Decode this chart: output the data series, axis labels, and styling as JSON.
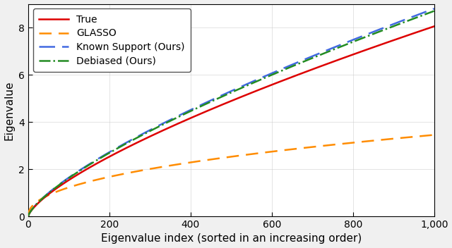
{
  "n_points": 1000,
  "xlabel": "Eigenvalue index (sorted in an increasing order)",
  "ylabel": "Eigenvalue",
  "xlim": [
    0,
    1000
  ],
  "ylim": [
    0,
    9
  ],
  "yticks": [
    0,
    2,
    4,
    6,
    8
  ],
  "xticks": [
    0,
    200,
    400,
    600,
    800,
    1000
  ],
  "xticklabels": [
    "0",
    "200",
    "400",
    "600",
    "800",
    "1,000"
  ],
  "true": {
    "label": "True",
    "color": "#dd0000",
    "linestyle": "solid",
    "linewidth": 1.8,
    "power": 0.72,
    "scale": 8.05
  },
  "glasso": {
    "label": "GLASSO",
    "color": "#ff8c00",
    "linestyle": "dashed",
    "linewidth": 1.8,
    "power": 0.45,
    "scale": 3.45
  },
  "known_support": {
    "label": "Known Support (Ours)",
    "color": "#4169e1",
    "linestyle": "dashed",
    "linewidth": 1.8,
    "power": 0.73,
    "scale": 8.8
  },
  "debiased": {
    "label": "Debiased (Ours)",
    "color": "#228b22",
    "linestyle": "dashdot",
    "linewidth": 1.8,
    "power": 0.73,
    "scale": 8.7
  },
  "legend_fontsize": 10,
  "axis_fontsize": 11,
  "tick_fontsize": 10,
  "background_color": "#ffffff",
  "figure_bg": "#f0f0f0"
}
